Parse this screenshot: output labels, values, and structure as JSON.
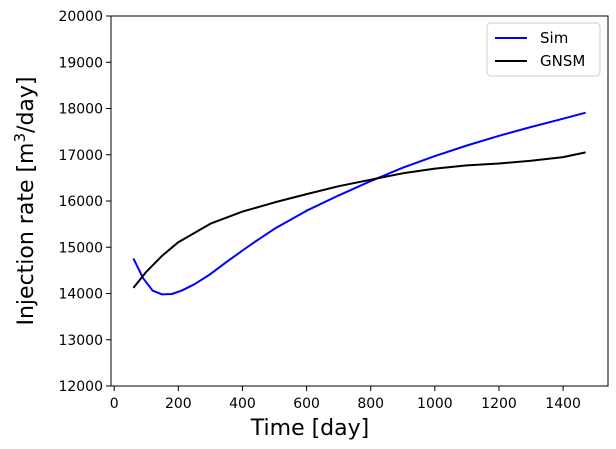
{
  "chart_data": {
    "type": "line",
    "xlabel": "Time [day]",
    "ylabel_main": "Injection rate [m",
    "ylabel_sup": "3",
    "ylabel_tail": "/day]",
    "xlim": [
      -10,
      1540
    ],
    "ylim": [
      12000,
      20000
    ],
    "xticks": [
      0,
      200,
      400,
      600,
      800,
      1000,
      1200,
      1400
    ],
    "yticks": [
      12000,
      13000,
      14000,
      15000,
      16000,
      17000,
      18000,
      19000,
      20000
    ],
    "grid": false,
    "legend_position": "top-right",
    "series": [
      {
        "name": "Sim",
        "color": "#0000ff",
        "x": [
          60,
          90,
          120,
          150,
          180,
          210,
          250,
          300,
          350,
          400,
          450,
          500,
          600,
          700,
          800,
          900,
          1000,
          1100,
          1200,
          1300,
          1400,
          1470
        ],
        "y": [
          14760,
          14330,
          14060,
          13980,
          13990,
          14060,
          14200,
          14420,
          14680,
          14930,
          15170,
          15400,
          15790,
          16120,
          16430,
          16720,
          16970,
          17200,
          17410,
          17600,
          17780,
          17910
        ]
      },
      {
        "name": "GNSM",
        "color": "#000000",
        "x": [
          60,
          100,
          150,
          200,
          300,
          400,
          500,
          600,
          700,
          800,
          900,
          1000,
          1100,
          1200,
          1300,
          1400,
          1470
        ],
        "y": [
          14120,
          14470,
          14820,
          15110,
          15510,
          15770,
          15970,
          16150,
          16320,
          16460,
          16600,
          16700,
          16770,
          16810,
          16870,
          16950,
          17050
        ]
      }
    ]
  }
}
